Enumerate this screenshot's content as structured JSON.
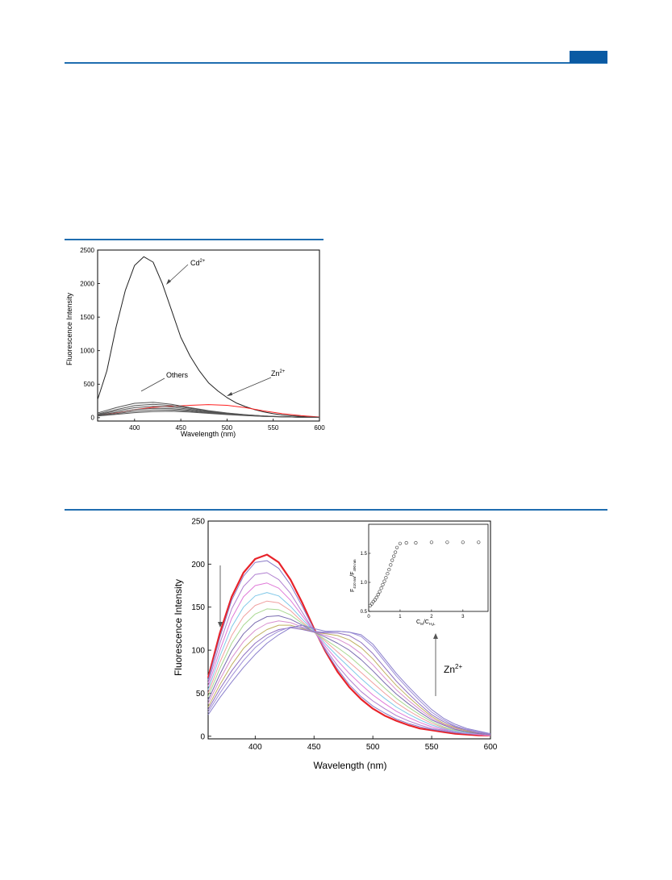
{
  "page": {
    "rule_color": "#1f6db0",
    "tab_color": "#0a5aa3"
  },
  "chart_data": [
    {
      "type": "line",
      "title": "",
      "xlabel": "Wavelength (nm)",
      "ylabel": "Fluorescence Intensity",
      "xlim": [
        360,
        600
      ],
      "ylim": [
        -50,
        2500
      ],
      "xticks": [
        400,
        450,
        500,
        550,
        600
      ],
      "yticks": [
        0,
        500,
        1000,
        1500,
        2000,
        2500
      ],
      "annotations": {
        "cd_label": "Cd",
        "cd_sup": "2+",
        "zn_label": "Zn",
        "zn_sup": "2+",
        "others_label": "Others"
      },
      "series": [
        {
          "color": "#222222",
          "x": [
            360,
            370,
            380,
            390,
            400,
            410,
            420,
            430,
            440,
            450,
            460,
            470,
            480,
            490,
            500,
            510,
            520,
            530,
            540,
            550,
            560,
            570,
            580,
            590,
            600
          ],
          "y": [
            270,
            700,
            1350,
            1900,
            2270,
            2400,
            2320,
            2000,
            1600,
            1200,
            920,
            700,
            520,
            400,
            300,
            220,
            165,
            120,
            85,
            60,
            40,
            28,
            20,
            12,
            8
          ]
        },
        {
          "color": "#ff2020",
          "x": [
            360,
            380,
            400,
            420,
            440,
            460,
            480,
            500,
            520,
            540,
            560,
            580,
            600
          ],
          "y": [
            40,
            75,
            120,
            155,
            170,
            185,
            195,
            185,
            150,
            100,
            60,
            30,
            10
          ]
        },
        {
          "color": "#555555",
          "x": [
            360,
            380,
            400,
            420,
            440,
            460,
            480,
            500,
            520,
            540,
            560,
            580,
            600
          ],
          "y": [
            70,
            150,
            215,
            230,
            200,
            150,
            105,
            70,
            45,
            25,
            15,
            8,
            5
          ]
        },
        {
          "color": "#555555",
          "x": [
            360,
            380,
            400,
            420,
            440,
            460,
            480,
            500,
            520,
            540,
            560,
            580,
            600
          ],
          "y": [
            55,
            120,
            180,
            200,
            180,
            140,
            100,
            68,
            43,
            25,
            15,
            8,
            5
          ]
        },
        {
          "color": "#555555",
          "x": [
            360,
            380,
            400,
            420,
            440,
            460,
            480,
            500,
            520,
            540,
            560,
            580,
            600
          ],
          "y": [
            45,
            100,
            150,
            170,
            158,
            125,
            92,
            63,
            40,
            24,
            14,
            8,
            4
          ]
        },
        {
          "color": "#555555",
          "x": [
            360,
            380,
            400,
            420,
            440,
            460,
            480,
            500,
            520,
            540,
            560,
            580,
            600
          ],
          "y": [
            38,
            80,
            120,
            140,
            135,
            110,
            82,
            58,
            37,
            22,
            13,
            7,
            4
          ]
        },
        {
          "color": "#555555",
          "x": [
            360,
            380,
            400,
            420,
            440,
            460,
            480,
            500,
            520,
            540,
            560,
            580,
            600
          ],
          "y": [
            30,
            62,
            95,
            115,
            115,
            97,
            73,
            52,
            34,
            20,
            12,
            7,
            4
          ]
        },
        {
          "color": "#555555",
          "x": [
            360,
            380,
            400,
            420,
            440,
            460,
            480,
            500,
            520,
            540,
            560,
            580,
            600
          ],
          "y": [
            25,
            50,
            75,
            92,
            95,
            83,
            64,
            46,
            30,
            18,
            11,
            6,
            3
          ]
        }
      ]
    },
    {
      "type": "line",
      "title": "",
      "xlabel": "Wavelength (nm)",
      "ylabel": "Fluorescence Intensity",
      "xlim": [
        360,
        600
      ],
      "ylim": [
        -3,
        250
      ],
      "xticks": [
        400,
        450,
        500,
        550,
        600
      ],
      "yticks": [
        0,
        50,
        100,
        150,
        200,
        250
      ],
      "annotation": {
        "label": "Zn",
        "sup": "2+"
      },
      "series": [
        {
          "color": "#e8232a",
          "width": 2.2,
          "x": [
            360,
            370,
            380,
            390,
            400,
            410,
            420,
            430,
            440,
            450,
            460,
            470,
            480,
            490,
            500,
            510,
            520,
            530,
            540,
            550,
            560,
            570,
            580,
            590,
            600
          ],
          "y": [
            68,
            120,
            162,
            190,
            206,
            211,
            202,
            182,
            155,
            125,
            98,
            75,
            57,
            43,
            32,
            24,
            18,
            13,
            9,
            7,
            5,
            3,
            2,
            1,
            1
          ]
        },
        {
          "color": "#8a7bc8",
          "width": 1,
          "x": [
            360,
            370,
            380,
            390,
            400,
            410,
            420,
            430,
            440,
            450,
            460,
            470,
            480,
            490,
            500,
            510,
            520,
            530,
            540,
            550,
            560,
            570,
            580,
            590,
            600
          ],
          "y": [
            65,
            115,
            158,
            186,
            202,
            204,
            195,
            176,
            151,
            124,
            99,
            78,
            60,
            46,
            35,
            27,
            20,
            15,
            11,
            8,
            6,
            4,
            3,
            2,
            1
          ]
        },
        {
          "color": "#b07fd0",
          "width": 1,
          "x": [
            360,
            370,
            380,
            390,
            400,
            410,
            420,
            430,
            440,
            450,
            460,
            470,
            480,
            490,
            500,
            510,
            520,
            530,
            540,
            550,
            560,
            570,
            580,
            590,
            600
          ],
          "y": [
            62,
            108,
            148,
            174,
            188,
            190,
            182,
            166,
            144,
            122,
            101,
            82,
            66,
            52,
            41,
            32,
            24,
            18,
            13,
            9,
            7,
            5,
            3,
            2,
            1
          ]
        },
        {
          "color": "#e07ad8",
          "width": 1,
          "x": [
            360,
            370,
            380,
            390,
            400,
            410,
            420,
            430,
            440,
            450,
            460,
            470,
            480,
            490,
            500,
            510,
            520,
            530,
            540,
            550,
            560,
            570,
            580,
            590,
            600
          ],
          "y": [
            58,
            100,
            137,
            162,
            175,
            178,
            172,
            158,
            140,
            122,
            104,
            88,
            73,
            60,
            48,
            38,
            29,
            22,
            16,
            11,
            8,
            6,
            4,
            2,
            1
          ]
        },
        {
          "color": "#7fc8e8",
          "width": 1,
          "x": [
            360,
            370,
            380,
            390,
            400,
            410,
            420,
            430,
            440,
            450,
            460,
            470,
            480,
            490,
            500,
            510,
            520,
            530,
            540,
            550,
            560,
            570,
            580,
            590,
            600
          ],
          "y": [
            54,
            93,
            127,
            150,
            163,
            167,
            163,
            151,
            136,
            122,
            107,
            93,
            80,
            67,
            55,
            44,
            34,
            26,
            19,
            13,
            9,
            6,
            4,
            3,
            2
          ]
        },
        {
          "color": "#f0a0a0",
          "width": 1,
          "x": [
            360,
            370,
            380,
            390,
            400,
            410,
            420,
            430,
            440,
            450,
            460,
            470,
            480,
            490,
            500,
            510,
            520,
            530,
            540,
            550,
            560,
            570,
            580,
            590,
            600
          ],
          "y": [
            50,
            86,
            117,
            139,
            152,
            157,
            155,
            146,
            133,
            121,
            110,
            98,
            86,
            74,
            62,
            50,
            39,
            30,
            22,
            15,
            10,
            7,
            5,
            3,
            2
          ]
        },
        {
          "color": "#a8d890",
          "width": 1,
          "x": [
            360,
            370,
            380,
            390,
            400,
            410,
            420,
            430,
            440,
            450,
            460,
            470,
            480,
            490,
            500,
            510,
            520,
            530,
            540,
            550,
            560,
            570,
            580,
            590,
            600
          ],
          "y": [
            46,
            79,
            108,
            129,
            142,
            148,
            147,
            141,
            131,
            121,
            112,
            103,
            93,
            81,
            69,
            56,
            44,
            34,
            25,
            17,
            11,
            7,
            5,
            3,
            2
          ]
        },
        {
          "color": "#7a6cb0",
          "width": 1,
          "x": [
            360,
            370,
            380,
            390,
            400,
            410,
            420,
            430,
            440,
            450,
            460,
            470,
            480,
            490,
            500,
            510,
            520,
            530,
            540,
            550,
            560,
            570,
            580,
            590,
            600
          ],
          "y": [
            42,
            72,
            99,
            119,
            132,
            139,
            140,
            136,
            129,
            121,
            115,
            108,
            100,
            89,
            76,
            62,
            49,
            38,
            28,
            19,
            13,
            8,
            5,
            3,
            2
          ]
        },
        {
          "color": "#d890d0",
          "width": 1,
          "x": [
            360,
            370,
            380,
            390,
            400,
            410,
            420,
            430,
            440,
            450,
            460,
            470,
            480,
            490,
            500,
            510,
            520,
            530,
            540,
            550,
            560,
            570,
            580,
            590,
            600
          ],
          "y": [
            38,
            66,
            91,
            110,
            123,
            131,
            134,
            132,
            127,
            121,
            117,
            113,
            106,
            96,
            83,
            68,
            54,
            42,
            31,
            21,
            14,
            9,
            6,
            4,
            2
          ]
        },
        {
          "color": "#c0b060",
          "width": 1,
          "x": [
            360,
            370,
            380,
            390,
            400,
            410,
            420,
            430,
            440,
            450,
            460,
            470,
            480,
            490,
            500,
            510,
            520,
            530,
            540,
            550,
            560,
            570,
            580,
            590,
            600
          ],
          "y": [
            34,
            60,
            83,
            102,
            115,
            124,
            129,
            129,
            125,
            121,
            119,
            117,
            112,
            103,
            90,
            74,
            59,
            46,
            34,
            23,
            15,
            10,
            6,
            4,
            2
          ]
        },
        {
          "color": "#9070c0",
          "width": 1,
          "x": [
            360,
            370,
            380,
            390,
            400,
            410,
            420,
            430,
            440,
            450,
            460,
            470,
            480,
            490,
            500,
            510,
            520,
            530,
            540,
            550,
            560,
            570,
            580,
            590,
            600
          ],
          "y": [
            31,
            55,
            76,
            94,
            108,
            118,
            124,
            126,
            124,
            121,
            120,
            120,
            117,
            109,
            96,
            80,
            64,
            50,
            37,
            25,
            17,
            11,
            7,
            4,
            2
          ]
        },
        {
          "color": "#a090d8",
          "width": 1,
          "x": [
            360,
            370,
            380,
            390,
            400,
            410,
            420,
            430,
            440,
            450,
            460,
            470,
            480,
            490,
            500,
            510,
            520,
            530,
            540,
            550,
            560,
            570,
            580,
            590,
            600
          ],
          "y": [
            28,
            50,
            70,
            88,
            103,
            114,
            122,
            127,
            126,
            122,
            121,
            122,
            121,
            116,
            104,
            87,
            70,
            55,
            41,
            28,
            19,
            12,
            8,
            5,
            3
          ]
        },
        {
          "color": "#8a7fcc",
          "width": 1,
          "x": [
            360,
            370,
            380,
            390,
            400,
            410,
            420,
            430,
            440,
            450,
            460,
            470,
            480,
            490,
            500,
            510,
            520,
            530,
            540,
            550,
            560,
            570,
            580,
            590,
            600
          ],
          "y": [
            25,
            45,
            63,
            80,
            95,
            108,
            118,
            126,
            129,
            125,
            122,
            122,
            121,
            118,
            107,
            90,
            73,
            58,
            44,
            31,
            21,
            14,
            9,
            6,
            3
          ]
        }
      ],
      "inset": {
        "type": "scatter",
        "xlabel": "C",
        "xlabel_sub1": "M",
        "xlabel_sep": "/C",
        "xlabel_sub2": "H",
        "xlabel_sub3": "3",
        "xlabel_sub4": "L",
        "ylabel": "F",
        "ylabel_sub1": "410 nm",
        "ylabel_sep": "/F",
        "ylabel_sub2": "490 nm",
        "xlim": [
          0,
          3.8
        ],
        "ylim": [
          0.5,
          2.0
        ],
        "xticks": [
          0,
          1,
          2,
          3
        ],
        "yticks": [
          0.5,
          1.0,
          1.5
        ],
        "ytick_labels": [
          "0.5",
          "1.0",
          "1.5"
        ],
        "x": [
          0.05,
          0.1,
          0.15,
          0.2,
          0.25,
          0.3,
          0.35,
          0.4,
          0.45,
          0.5,
          0.55,
          0.6,
          0.65,
          0.7,
          0.75,
          0.8,
          0.85,
          0.9,
          1.0,
          1.2,
          1.5,
          2.0,
          2.5,
          3.0,
          3.5
        ],
        "y": [
          0.6,
          0.63,
          0.67,
          0.7,
          0.74,
          0.79,
          0.84,
          0.9,
          0.96,
          1.02,
          1.08,
          1.15,
          1.22,
          1.3,
          1.38,
          1.45,
          1.52,
          1.6,
          1.67,
          1.68,
          1.68,
          1.69,
          1.69,
          1.69,
          1.69
        ]
      }
    }
  ]
}
